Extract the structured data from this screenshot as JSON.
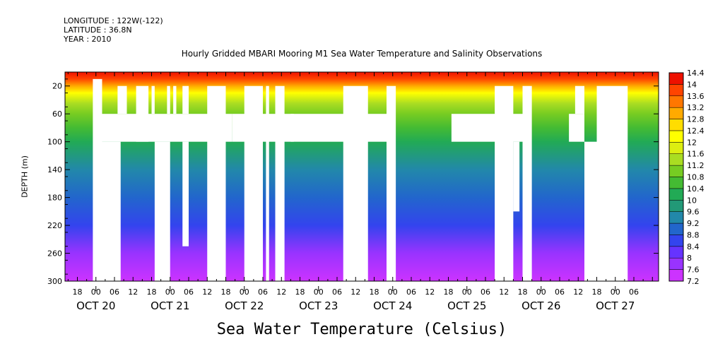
{
  "header": {
    "longitude": "LONGITUDE : 122W(-122)",
    "latitude": "LATITUDE : 36.8N",
    "year": "YEAR : 2010"
  },
  "chart_data": {
    "type": "heatmap",
    "title": "Hourly Gridded MBARI Mooring M1 Sea Water Temperature and Salinity Observations",
    "xlabel": "Sea Water Temperature (Celsius)",
    "ylabel": "DEPTH (m)",
    "x_unit": "hours since 2010-10-20 00:00",
    "xlim": [
      -10,
      182
    ],
    "ylim": [
      300,
      0
    ],
    "y_ticks": [
      20,
      60,
      100,
      140,
      180,
      220,
      260,
      300
    ],
    "x_hour_ticks": [
      "12",
      "18",
      "00",
      "06",
      "12",
      "18",
      "00",
      "06",
      "12",
      "18",
      "00",
      "06",
      "12",
      "18",
      "00",
      "06",
      "12",
      "18",
      "00",
      "06",
      "12",
      "18",
      "00",
      "06",
      "12",
      "18",
      "00",
      "06",
      "12",
      "18",
      "00",
      "06"
    ],
    "x_hour_tick_hours": [
      -12,
      -6,
      0,
      6,
      12,
      18,
      24,
      30,
      36,
      42,
      48,
      54,
      60,
      66,
      72,
      78,
      84,
      90,
      96,
      102,
      108,
      114,
      120,
      126,
      132,
      138,
      144,
      150,
      156,
      162,
      168,
      174
    ],
    "date_labels": [
      "OCT 20",
      "OCT 21",
      "OCT 22",
      "OCT 23",
      "OCT 24",
      "OCT 25",
      "OCT 26",
      "OCT 27"
    ],
    "date_label_hours": [
      0,
      24,
      48,
      72,
      96,
      120,
      144,
      168
    ],
    "colorbar": {
      "levels": [
        7.2,
        7.6,
        8,
        8.4,
        8.8,
        9.2,
        9.6,
        10,
        10.4,
        10.8,
        11.2,
        11.6,
        12,
        12.4,
        12.8,
        13.2,
        13.6,
        14,
        14.4
      ],
      "colors": [
        "#cc33ff",
        "#9933ff",
        "#6633ff",
        "#3344ee",
        "#2266cc",
        "#2288aa",
        "#229977",
        "#22aa55",
        "#44bb33",
        "#77cc22",
        "#aadd22",
        "#ddee11",
        "#ffff00",
        "#ffdd00",
        "#ffaa00",
        "#ff7700",
        "#ff4400",
        "#ee1100",
        "#aa0000"
      ]
    },
    "temperature_profile": {
      "depth": [
        0,
        10,
        20,
        30,
        45,
        60,
        80,
        100,
        140,
        180,
        220,
        260,
        300
      ],
      "value": [
        14.2,
        13.8,
        13.0,
        12.2,
        11.4,
        10.9,
        10.4,
        10.0,
        9.4,
        8.9,
        8.4,
        7.9,
        7.5
      ]
    },
    "missing_data": [
      {
        "t0": -1,
        "t1": 2,
        "d0": 10,
        "d1": 300
      },
      {
        "t0": 7,
        "t1": 10,
        "d0": 20,
        "d1": 60
      },
      {
        "t0": 2,
        "t1": 8,
        "d0": 100,
        "d1": 300
      },
      {
        "t0": 0,
        "t1": 18,
        "d0": 60,
        "d1": 100
      },
      {
        "t0": 13,
        "t1": 17,
        "d0": 20,
        "d1": 100
      },
      {
        "t0": 18,
        "t1": 19,
        "d0": 20,
        "d1": 60
      },
      {
        "t0": 23,
        "t1": 24,
        "d0": 20,
        "d1": 60
      },
      {
        "t0": 18,
        "t1": 44,
        "d0": 60,
        "d1": 100
      },
      {
        "t0": 19,
        "t1": 24,
        "d0": 100,
        "d1": 300
      },
      {
        "t0": 25,
        "t1": 26,
        "d0": 20,
        "d1": 60
      },
      {
        "t0": 28,
        "t1": 30,
        "d0": 20,
        "d1": 60
      },
      {
        "t0": 28,
        "t1": 30,
        "d0": 100,
        "d1": 250
      },
      {
        "t0": 36,
        "t1": 42,
        "d0": 20,
        "d1": 300
      },
      {
        "t0": 48,
        "t1": 54,
        "d0": 20,
        "d1": 300
      },
      {
        "t0": 55,
        "t1": 56,
        "d0": 20,
        "d1": 300
      },
      {
        "t0": 58,
        "t1": 61,
        "d0": 20,
        "d1": 300
      },
      {
        "t0": 44,
        "t1": 96,
        "d0": 60,
        "d1": 100
      },
      {
        "t0": 60,
        "t1": 61,
        "d0": 60,
        "d1": 100
      },
      {
        "t0": 63,
        "t1": 64,
        "d0": 60,
        "d1": 100
      },
      {
        "t0": 80,
        "t1": 88,
        "d0": 20,
        "d1": 300
      },
      {
        "t0": 94,
        "t1": 97,
        "d0": 20,
        "d1": 300
      },
      {
        "t0": 115,
        "t1": 140,
        "d0": 60,
        "d1": 100
      },
      {
        "t0": 129,
        "t1": 135,
        "d0": 20,
        "d1": 300
      },
      {
        "t0": 135,
        "t1": 137,
        "d0": 100,
        "d1": 200
      },
      {
        "t0": 138,
        "t1": 141,
        "d0": 20,
        "d1": 300
      },
      {
        "t0": 153,
        "t1": 158,
        "d0": 60,
        "d1": 100
      },
      {
        "t0": 155,
        "t1": 158,
        "d0": 20,
        "d1": 60
      },
      {
        "t0": 158,
        "t1": 162,
        "d0": 100,
        "d1": 300
      },
      {
        "t0": 162,
        "t1": 172,
        "d0": 20,
        "d1": 300
      }
    ]
  }
}
